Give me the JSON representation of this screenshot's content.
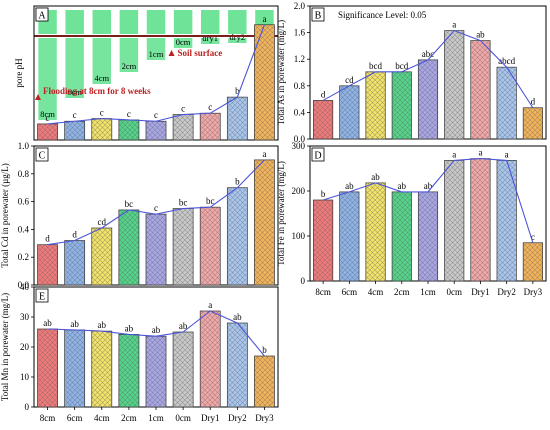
{
  "colors": [
    "#f07a7a",
    "#8fb4e8",
    "#f2e36a",
    "#55d48a",
    "#a9a6e6",
    "#c9c9c9",
    "#f2a8a8",
    "#a9c6ee",
    "#f2b45a"
  ],
  "categories": [
    "8cm",
    "6cm",
    "4cm",
    "2cm",
    "1cm",
    "0cm",
    "Dry1",
    "Dry2",
    "Dry3"
  ],
  "chart_data": [
    {
      "panel": "A",
      "type": "bar",
      "ylabel": "pore pH",
      "ylim": [
        0,
        1
      ],
      "no_ticks": true,
      "values": [
        0.12,
        0.14,
        0.16,
        0.15,
        0.14,
        0.19,
        0.2,
        0.32,
        0.86
      ],
      "letters": [
        "c",
        "c",
        "c",
        "c",
        "c",
        "c",
        "c",
        "b",
        "a"
      ],
      "annotations": {
        "soil_surface": "Soil surface",
        "flooding": "Flooding at 8cm for 8 weeks",
        "depths": [
          "8cm",
          "6cm",
          "4cm",
          "2cm",
          "1cm",
          "0cm",
          "dry1",
          "dry2",
          "dry3"
        ]
      }
    },
    {
      "panel": "B",
      "type": "bar",
      "ylabel": "Total As in porewater (mg/L)",
      "ylim": [
        0,
        2.0
      ],
      "ticks": [
        0.0,
        0.4,
        0.8,
        1.2,
        1.6,
        2.0
      ],
      "values": [
        0.58,
        0.8,
        1.01,
        1.01,
        1.19,
        1.63,
        1.48,
        1.08,
        0.47
      ],
      "letters": [
        "d",
        "cd",
        "bcd",
        "bcd",
        "abc",
        "a",
        "ab",
        "abcd",
        "d"
      ],
      "annotation": "Significance Level: 0.05"
    },
    {
      "panel": "C",
      "type": "bar",
      "ylabel": "Total Cd in porewater (µg/L)",
      "ylim": [
        0,
        1.0
      ],
      "ticks": [
        0.0,
        0.2,
        0.4,
        0.6,
        0.8,
        1.0
      ],
      "values": [
        0.29,
        0.32,
        0.41,
        0.54,
        0.51,
        0.55,
        0.56,
        0.7,
        0.9
      ],
      "letters": [
        "d",
        "d",
        "cd",
        "bc",
        "c",
        "bc",
        "bc",
        "b",
        "a"
      ]
    },
    {
      "panel": "D",
      "type": "bar",
      "ylabel": "Total Fe in porewater (mg/L)",
      "ylim": [
        0,
        300
      ],
      "ticks": [
        0,
        100,
        200,
        300
      ],
      "values": [
        180,
        198,
        218,
        198,
        198,
        268,
        272,
        268,
        85
      ],
      "letters": [
        "b",
        "ab",
        "ab",
        "ab",
        "ab",
        "a",
        "a",
        "a",
        "c"
      ]
    },
    {
      "panel": "E",
      "type": "bar",
      "ylabel": "Total Mn in porewater (mg/L)",
      "ylim": [
        0,
        40
      ],
      "ticks": [
        0,
        10,
        20,
        30,
        40
      ],
      "values": [
        26,
        25.7,
        25.3,
        24.2,
        23.6,
        25.0,
        32,
        28,
        17
      ],
      "letters": [
        "ab",
        "ab",
        "ab",
        "ab",
        "ab",
        "ab",
        "a",
        "ab",
        "b"
      ]
    }
  ]
}
